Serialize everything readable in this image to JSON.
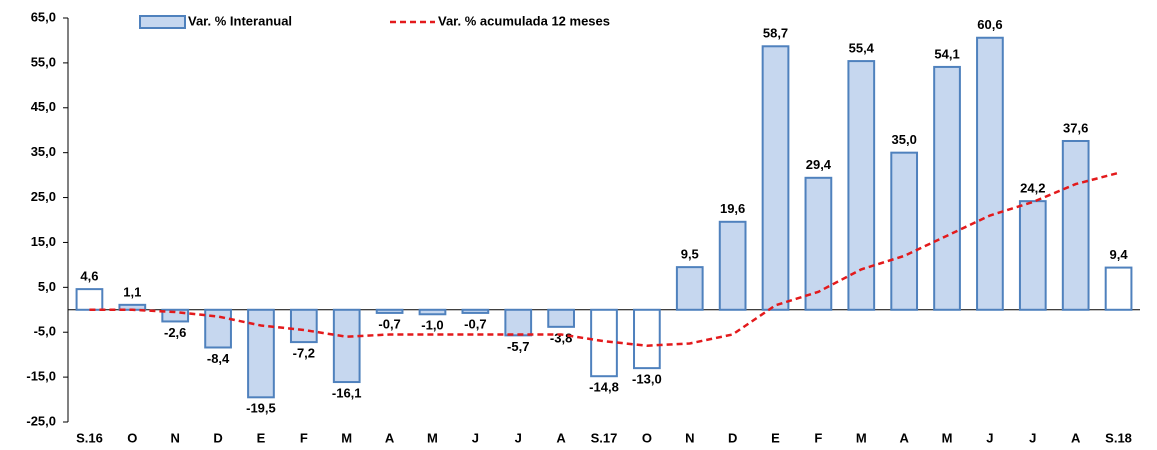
{
  "chart_data": {
    "type": "bar",
    "categories": [
      "S.16",
      "O",
      "N",
      "D",
      "E",
      "F",
      "M",
      "A",
      "M",
      "J",
      "J",
      "A",
      "S.17",
      "O",
      "N",
      "D",
      "E",
      "F",
      "M",
      "A",
      "M",
      "J",
      "J",
      "A",
      "S.18"
    ],
    "series": [
      {
        "name": "Var. % Interanual",
        "type": "bar",
        "color": "#c6d7ef",
        "edgecolor": "#4f81bd",
        "colors": [
          "#ffffff",
          "#c6d7ef",
          "#c6d7ef",
          "#c6d7ef",
          "#c6d7ef",
          "#c6d7ef",
          "#c6d7ef",
          "#c6d7ef",
          "#c6d7ef",
          "#c6d7ef",
          "#c6d7ef",
          "#c6d7ef",
          "#ffffff",
          "#ffffff",
          "#c6d7ef",
          "#c6d7ef",
          "#c6d7ef",
          "#c6d7ef",
          "#c6d7ef",
          "#c6d7ef",
          "#c6d7ef",
          "#c6d7ef",
          "#c6d7ef",
          "#c6d7ef",
          "#ffffff"
        ],
        "values": [
          4.6,
          1.1,
          -2.6,
          -8.4,
          -19.5,
          -7.2,
          -16.1,
          -0.7,
          -1.0,
          -0.7,
          -5.7,
          -3.8,
          -14.8,
          -13.0,
          9.5,
          19.6,
          58.7,
          29.4,
          55.4,
          35.0,
          54.1,
          60.6,
          24.2,
          37.6,
          9.4
        ],
        "value_labels": [
          "4,6",
          "1,1",
          "-2,6",
          "-8,4",
          "-19,5",
          "-7,2",
          "-16,1",
          "-0,7",
          "-1,0",
          "-0,7",
          "-5,7",
          "-3,8",
          "-14,8",
          "-13,0",
          "9,5",
          "19,6",
          "58,7",
          "29,4",
          "55,4",
          "35,0",
          "54,1",
          "60,6",
          "24,2",
          "37,6",
          "9,4"
        ]
      },
      {
        "name": "Var. % acumulada 12 meses",
        "type": "line",
        "color": "#e31a1c",
        "dashed": true,
        "values": [
          0,
          0,
          -0.5,
          -1.5,
          -3.5,
          -4.5,
          -6,
          -5.5,
          -5.5,
          -5.5,
          -5.5,
          -5.5,
          -7,
          -8,
          -7.5,
          -5.5,
          1,
          4,
          9,
          12,
          16.5,
          21,
          24,
          28,
          30.5
        ]
      }
    ],
    "ylim": [
      -25,
      65
    ],
    "yticks": [
      {
        "value": -25,
        "label": "-25,0"
      },
      {
        "value": -15,
        "label": "-15,0"
      },
      {
        "value": -5,
        "label": "-5,0"
      },
      {
        "value": 5,
        "label": "5,0"
      },
      {
        "value": 15,
        "label": "15,0"
      },
      {
        "value": 25,
        "label": "25,0"
      },
      {
        "value": 35,
        "label": "35,0"
      },
      {
        "value": 45,
        "label": "45,0"
      },
      {
        "value": 55,
        "label": "55,0"
      },
      {
        "value": 65,
        "label": "65,0"
      }
    ]
  }
}
